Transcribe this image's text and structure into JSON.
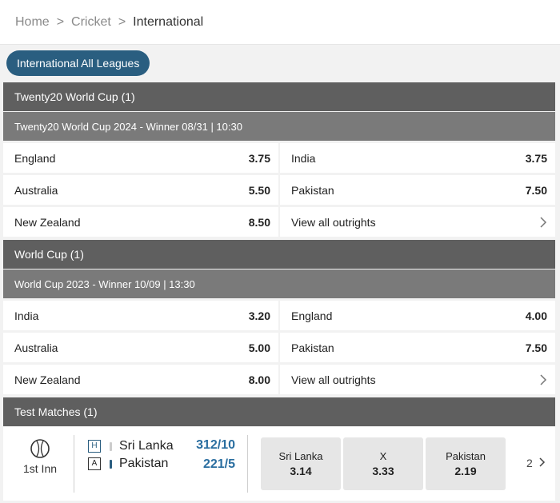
{
  "breadcrumb": {
    "home": "Home",
    "cricket": "Cricket",
    "current": "International",
    "separator": ">"
  },
  "filter_pill": "International All Leagues",
  "sections": [
    {
      "header": "Twenty20 World Cup (1)",
      "subheader": "Twenty20 World Cup 2024 - Winner 08/31 | 10:30",
      "rows": [
        {
          "left": {
            "team": "England",
            "odds": "3.75"
          },
          "right": {
            "team": "India",
            "odds": "3.75"
          }
        },
        {
          "left": {
            "team": "Australia",
            "odds": "5.50"
          },
          "right": {
            "team": "Pakistan",
            "odds": "7.50"
          }
        },
        {
          "left": {
            "team": "New Zealand",
            "odds": "8.50"
          },
          "right": {
            "link": "View all outrights"
          }
        }
      ]
    },
    {
      "header": "World Cup (1)",
      "subheader": "World Cup 2023 - Winner 10/09 | 13:30",
      "rows": [
        {
          "left": {
            "team": "India",
            "odds": "3.20"
          },
          "right": {
            "team": "England",
            "odds": "4.00"
          }
        },
        {
          "left": {
            "team": "Australia",
            "odds": "5.00"
          },
          "right": {
            "team": "Pakistan",
            "odds": "7.50"
          }
        },
        {
          "left": {
            "team": "New Zealand",
            "odds": "8.00"
          },
          "right": {
            "link": "View all outrights"
          }
        }
      ]
    }
  ],
  "test_matches": {
    "header": "Test Matches (1)",
    "innings": "1st Inn",
    "home": {
      "badge": "H",
      "team": "Sri Lanka",
      "score": "312/10",
      "bar_color": "#cccccc"
    },
    "away": {
      "badge": "A",
      "team": "Pakistan",
      "score": "221/5",
      "bar_color": "#2a5e80"
    },
    "odds": [
      {
        "label": "Sri Lanka",
        "value": "3.14"
      },
      {
        "label": "X",
        "value": "3.33"
      },
      {
        "label": "Pakistan",
        "value": "2.19"
      }
    ],
    "more_markets": "2",
    "more_icon": "chevron-right-icon"
  },
  "icons": {
    "row_link": "chevron-right-icon",
    "sport": "cricket-ball-icon"
  },
  "colors": {
    "accent": "#2a5e80",
    "score": "#2a6ea0",
    "section_header": "#5f5f5f",
    "sub_header": "#7a7a7a"
  }
}
